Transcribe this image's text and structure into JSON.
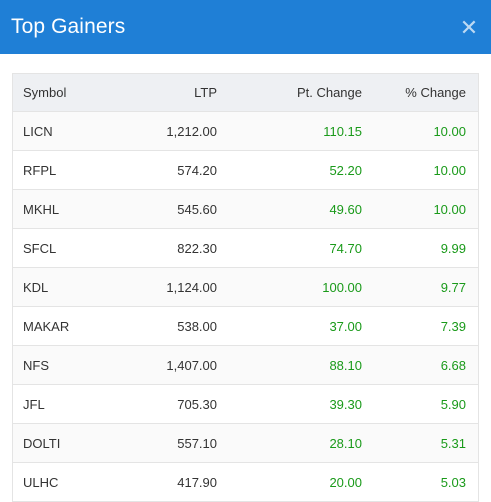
{
  "header": {
    "title": "Top Gainers",
    "close_icon": "close-icon"
  },
  "table": {
    "columns": [
      "Symbol",
      "LTP",
      "Pt. Change",
      "% Change"
    ],
    "rows": [
      {
        "symbol": "LICN",
        "ltp": "1,212.00",
        "pt_change": "110.15",
        "pct_change": "10.00"
      },
      {
        "symbol": "RFPL",
        "ltp": "574.20",
        "pt_change": "52.20",
        "pct_change": "10.00"
      },
      {
        "symbol": "MKHL",
        "ltp": "545.60",
        "pt_change": "49.60",
        "pct_change": "10.00"
      },
      {
        "symbol": "SFCL",
        "ltp": "822.30",
        "pt_change": "74.70",
        "pct_change": "9.99"
      },
      {
        "symbol": "KDL",
        "ltp": "1,124.00",
        "pt_change": "100.00",
        "pct_change": "9.77"
      },
      {
        "symbol": "MAKAR",
        "ltp": "538.00",
        "pt_change": "37.00",
        "pct_change": "7.39"
      },
      {
        "symbol": "NFS",
        "ltp": "1,407.00",
        "pt_change": "88.10",
        "pct_change": "6.68"
      },
      {
        "symbol": "JFL",
        "ltp": "705.30",
        "pt_change": "39.30",
        "pct_change": "5.90"
      },
      {
        "symbol": "DOLTI",
        "ltp": "557.10",
        "pt_change": "28.10",
        "pct_change": "5.31"
      },
      {
        "symbol": "ULHC",
        "ltp": "417.90",
        "pt_change": "20.00",
        "pct_change": "5.03"
      }
    ]
  },
  "colors": {
    "header_bg": "#1f7fd6",
    "positive": "#1a9a1a"
  }
}
